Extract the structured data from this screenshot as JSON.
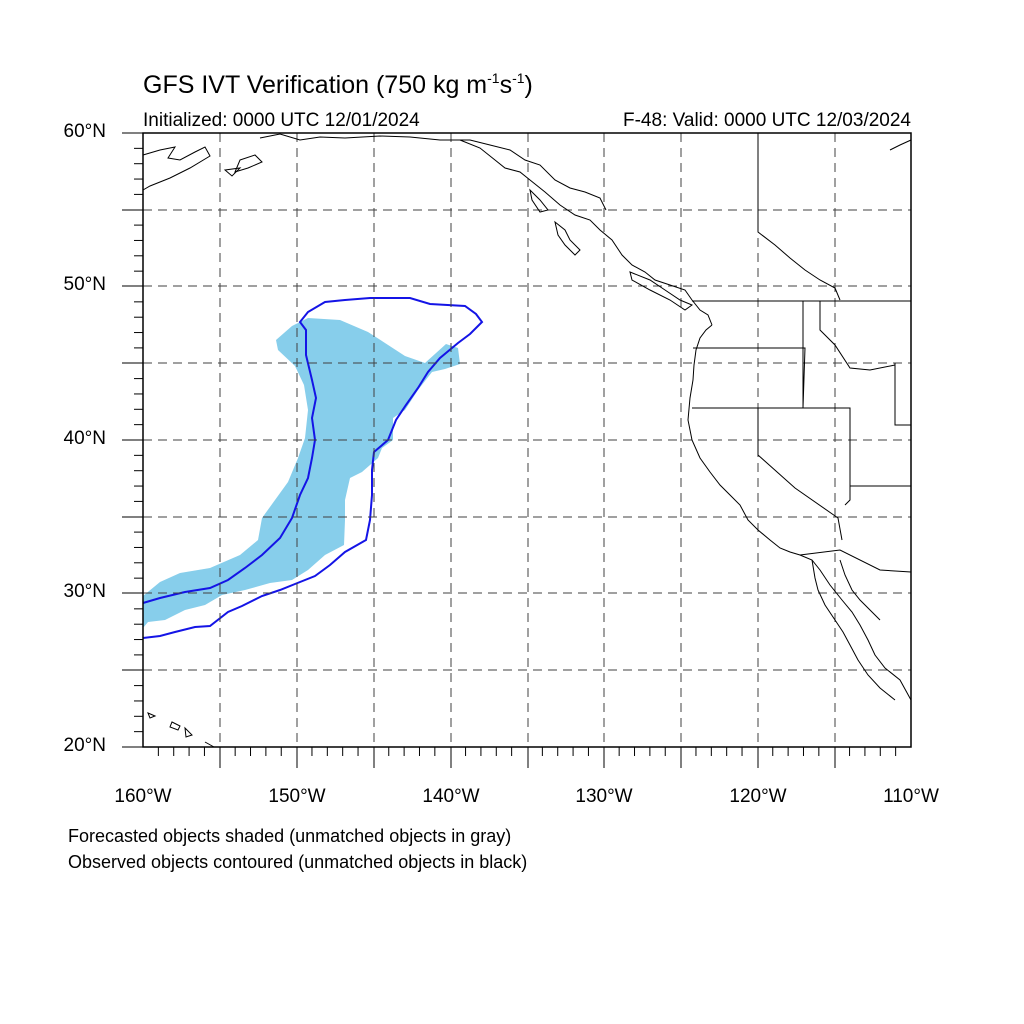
{
  "title": {
    "prefix": "GFS IVT Verification (750 kg m",
    "exp1": "-1",
    "mid": "s",
    "exp2": "-1",
    "suffix": ")"
  },
  "initialized": "Initialized: 0000 UTC 12/01/2024",
  "valid": "F-48: Valid: 0000 UTC 12/03/2024",
  "lat_labels": [
    "60°N",
    "50°N",
    "40°N",
    "30°N",
    "20°N"
  ],
  "lon_labels": [
    "160°W",
    "150°W",
    "140°W",
    "130°W",
    "120°W",
    "110°W"
  ],
  "notes": [
    "Forecasted objects shaded (unmatched objects in gray)",
    "Observed objects contoured (unmatched objects in black)"
  ],
  "colors": {
    "forecast_fill": "#87ceeb",
    "observed_contour": "#1414e6",
    "coastline": "#000000",
    "grid": "#404040"
  },
  "map_extent": {
    "lon": [
      -160,
      -110
    ],
    "lat": [
      20,
      60
    ]
  },
  "grid_spacing_deg": 5
}
